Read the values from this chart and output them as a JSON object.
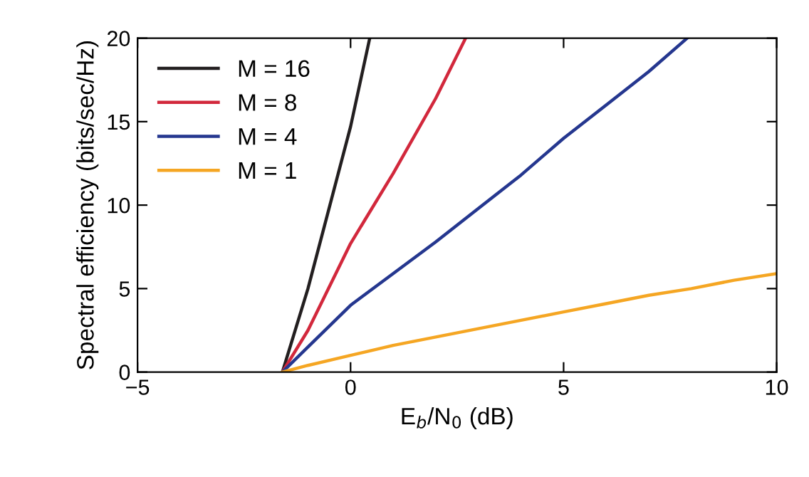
{
  "chart_data": {
    "type": "line",
    "xlabel": "E$_{b}$/N$_{0}$ (dB)",
    "ylabel": "Spectral efficiency (bits/sec/Hz)",
    "xlim": [
      -5,
      10
    ],
    "ylim": [
      0,
      20
    ],
    "xticks": [
      {
        "value": -5,
        "label": "−5"
      },
      0,
      5,
      10
    ],
    "yticks": [
      0,
      5,
      10,
      15,
      20
    ],
    "legend": "top left",
    "grid": false,
    "series": [
      {
        "name": "M = 16",
        "color": "#231f20",
        "x": [
          -1.6,
          -1,
          0,
          0.45
        ],
        "values": [
          0,
          5,
          14.7,
          20
        ]
      },
      {
        "name": "M = 8",
        "color": "#d2283c",
        "x": [
          -1.6,
          -1,
          0,
          1,
          2,
          2.7
        ],
        "values": [
          0,
          2.5,
          7.7,
          11.9,
          16.4,
          20
        ]
      },
      {
        "name": "M = 4",
        "color": "#25378f",
        "x": [
          -1.6,
          -1,
          0,
          1,
          2,
          3,
          4,
          5,
          6,
          7,
          7.9
        ],
        "values": [
          0,
          1.5,
          4,
          5.9,
          7.8,
          9.8,
          11.8,
          14,
          16,
          18,
          20
        ]
      },
      {
        "name": "M = 1",
        "color": "#f5a623",
        "x": [
          -1.6,
          -1,
          0,
          1,
          2,
          3,
          4,
          5,
          6,
          7,
          8,
          9,
          10
        ],
        "values": [
          0,
          0.4,
          1,
          1.6,
          2.1,
          2.6,
          3.1,
          3.6,
          4.1,
          4.6,
          5.0,
          5.5,
          5.9
        ]
      }
    ]
  }
}
